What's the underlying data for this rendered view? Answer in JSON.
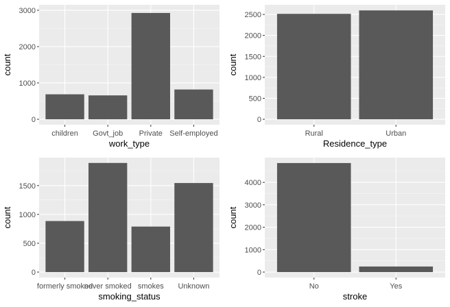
{
  "colors": {
    "panel_background": "#ebebeb",
    "bar_fill": "#595959",
    "gridline": "#ffffff"
  },
  "chart_data": [
    {
      "type": "bar",
      "categories": [
        "children",
        "Govt_job",
        "Private",
        "Self-employed"
      ],
      "values": [
        687,
        657,
        2925,
        819
      ],
      "xlabel": "work_type",
      "ylabel": "count",
      "ylim": [
        0,
        3000
      ],
      "yticks": [
        0,
        1000,
        2000,
        3000
      ],
      "grid": true,
      "legend": "none"
    },
    {
      "type": "bar",
      "categories": [
        "Rural",
        "Urban"
      ],
      "values": [
        2514,
        2596
      ],
      "xlabel": "Residence_type",
      "ylabel": "count",
      "ylim": [
        0,
        2600
      ],
      "yticks": [
        0,
        500,
        1000,
        1500,
        2000,
        2500
      ],
      "grid": true,
      "legend": "none"
    },
    {
      "type": "bar",
      "categories": [
        "formerly smoked",
        "never smoked",
        "smokes",
        "Unknown"
      ],
      "values": [
        885,
        1892,
        789,
        1544
      ],
      "xlabel": "smoking_status",
      "ylabel": "count",
      "ylim": [
        0,
        1890
      ],
      "yticks": [
        0,
        500,
        1000,
        1500
      ],
      "grid": true,
      "legend": "none"
    },
    {
      "type": "bar",
      "categories": [
        "No",
        "Yes"
      ],
      "values": [
        4861,
        249
      ],
      "xlabel": "stroke",
      "ylabel": "count",
      "ylim": [
        0,
        4860
      ],
      "yticks": [
        0,
        1000,
        2000,
        3000,
        4000
      ],
      "grid": true,
      "legend": "none"
    }
  ]
}
